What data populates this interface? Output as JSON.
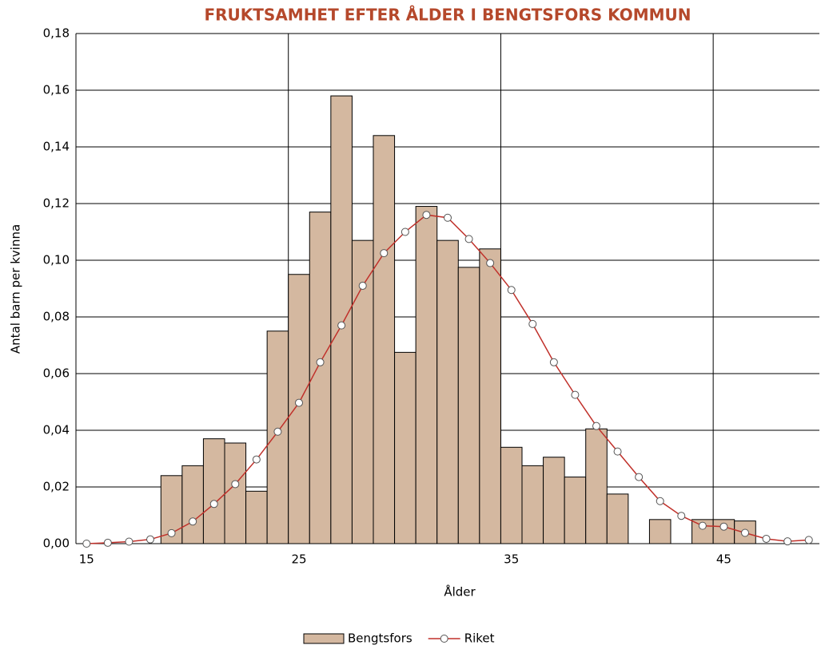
{
  "chart_data": {
    "type": "bar_line",
    "title": "FRUKTSAMHET EFTER ÅLDER I BENGTSFORS KOMMUN",
    "title_color": "#b5482b",
    "x_label": "Ålder",
    "y_label": "Antal barn per kvinna",
    "categories": [
      "15",
      null,
      null,
      null,
      null,
      null,
      null,
      null,
      null,
      null,
      "25",
      null,
      null,
      null,
      null,
      null,
      null,
      null,
      null,
      null,
      "35",
      null,
      null,
      null,
      null,
      null,
      null,
      null,
      null,
      null,
      "45",
      null,
      null,
      null,
      null
    ],
    "series": [
      {
        "name": "Bengtsfors",
        "kind": "bar",
        "color": "#d4b8a0",
        "values": [
          0,
          0,
          0,
          0,
          0.024,
          0.0275,
          0.037,
          0.0355,
          0.0185,
          0.075,
          0.095,
          0.117,
          0.158,
          0.107,
          0.144,
          0.0675,
          0.119,
          0.107,
          0.0975,
          0.104,
          0.034,
          0.0275,
          0.0305,
          0.0235,
          0.0405,
          0.0175,
          0,
          0.0085,
          0,
          0.0085,
          0.0085,
          0.008,
          0,
          0,
          0
        ]
      },
      {
        "name": "Riket",
        "kind": "line",
        "color": "#c0302a",
        "values": [
          0,
          0.0003,
          0.0007,
          0.0015,
          0.0037,
          0.0078,
          0.014,
          0.021,
          0.0297,
          0.0395,
          0.0497,
          0.064,
          0.077,
          0.091,
          0.1025,
          0.11,
          0.116,
          0.115,
          0.1075,
          0.099,
          0.0895,
          0.0775,
          0.064,
          0.0525,
          0.0415,
          0.0325,
          0.0235,
          0.015,
          0.0098,
          0.0063,
          0.006,
          0.0038,
          0.0017,
          0.0008,
          0.0013
        ]
      }
    ],
    "ylim": [
      0,
      0.18
    ],
    "yticks": [
      {
        "value": 0,
        "label": "0,00"
      },
      {
        "value": 0.02,
        "label": "0,02"
      },
      {
        "value": 0.04,
        "label": "0,04"
      },
      {
        "value": 0.06,
        "label": "0,06"
      },
      {
        "value": 0.08,
        "label": "0,08"
      },
      {
        "value": 0.1,
        "label": "0,10"
      },
      {
        "value": 0.12,
        "label": "0,12"
      },
      {
        "value": 0.14,
        "label": "0,14"
      },
      {
        "value": 0.16,
        "label": "0,16"
      },
      {
        "value": 0.18,
        "label": "0,18"
      }
    ],
    "grid": true,
    "legend": "bottom"
  }
}
